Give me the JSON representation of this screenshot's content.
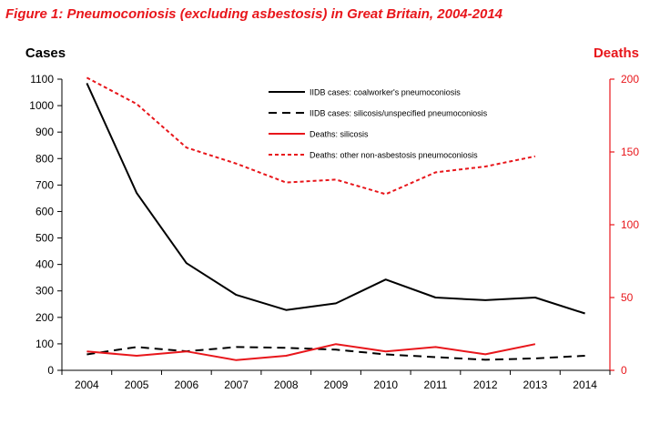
{
  "figure_title": "Figure 1: Pneumoconiosis (excluding asbestosis) in Great Britain, 2004-2014",
  "colors": {
    "title": "#e8161b",
    "deaths": "#e8161b",
    "cases": "#000000"
  },
  "chart_data": {
    "type": "line",
    "x": [
      "2004",
      "2005",
      "2006",
      "2007",
      "2008",
      "2009",
      "2010",
      "2011",
      "2012",
      "2013",
      "2014"
    ],
    "y_left": {
      "label": "Cases",
      "lim": [
        0,
        1100
      ],
      "ticks": [
        "0",
        "100",
        "200",
        "300",
        "400",
        "500",
        "600",
        "700",
        "800",
        "900",
        "1000",
        "1100"
      ]
    },
    "y_right": {
      "label": "Deaths",
      "lim": [
        0,
        200
      ],
      "ticks": [
        "0",
        "50",
        "100",
        "150",
        "200"
      ]
    },
    "grid": false,
    "legend_position": "top-center",
    "series": [
      {
        "name": "IIDB cases: coalworker's pneumoconiosis",
        "axis": "left",
        "color": "#000000",
        "dash": "solid",
        "values": [
          1085,
          670,
          405,
          285,
          228,
          253,
          343,
          275,
          265,
          275,
          215
        ]
      },
      {
        "name": "IIDB cases: silicosis/unspecified pneumoconiosis",
        "axis": "left",
        "color": "#000000",
        "dash": "long",
        "values": [
          60,
          88,
          72,
          88,
          85,
          78,
          60,
          50,
          40,
          45,
          55
        ]
      },
      {
        "name": "Deaths: silicosis",
        "axis": "right",
        "color": "#e8161b",
        "dash": "solid",
        "values": [
          13,
          10,
          13,
          7,
          10,
          18,
          13,
          16,
          11,
          18,
          null
        ]
      },
      {
        "name": "Deaths: other non-asbestosis pneumoconiosis",
        "axis": "right",
        "color": "#e8161b",
        "dash": "short",
        "values": [
          201,
          183,
          153,
          142,
          129,
          131,
          121,
          136,
          140,
          147,
          null
        ]
      }
    ]
  }
}
